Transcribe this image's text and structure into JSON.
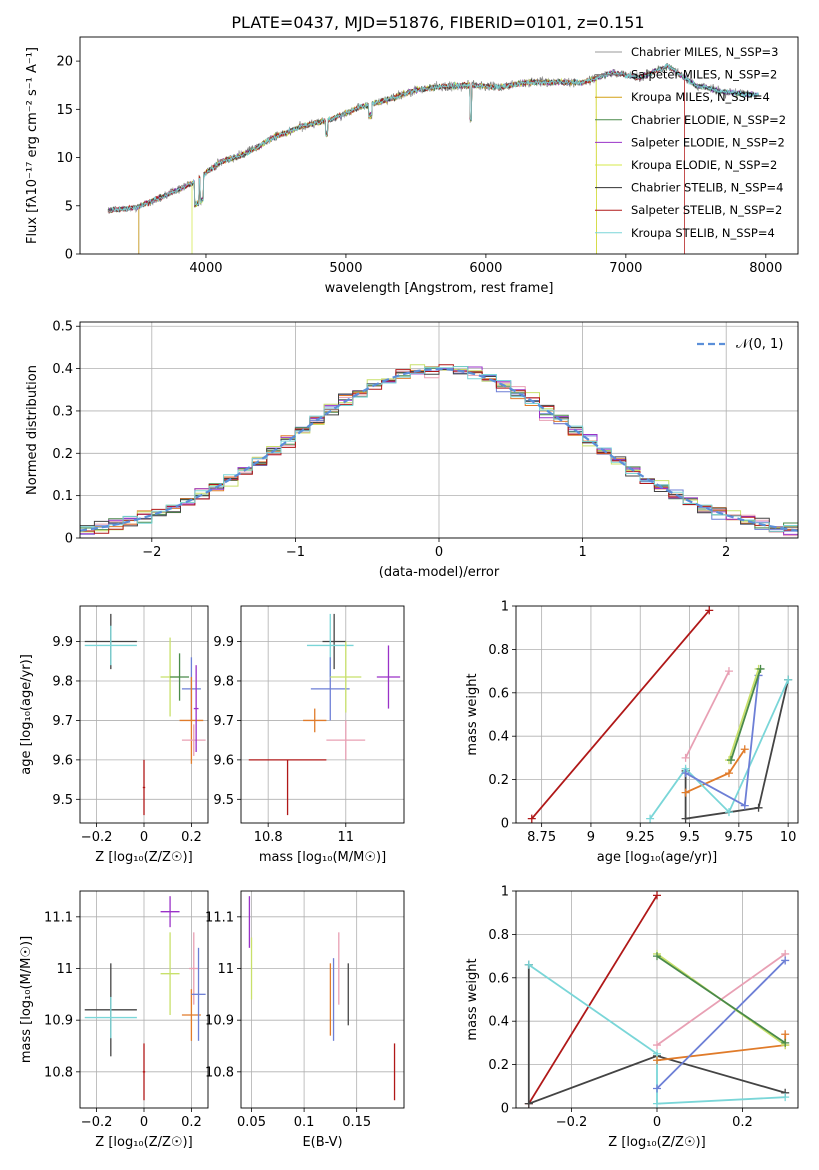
{
  "figure_title": "PLATE=0437, MJD=51876, FIBERID=0101, z=0.151",
  "colors": {
    "c0": "#e8a0b4",
    "c1": "#6d7fd6",
    "c2": "#e07b2a",
    "c3": "#4a8a4a",
    "c4": "#9a32c8",
    "c5": "#c8e06a",
    "c6": "#444444",
    "c7": "#b01818",
    "c8": "#7ad6d8",
    "gaussian": "#5b8fd9"
  },
  "chart_data": [
    {
      "id": "spectrum",
      "type": "line",
      "title": "PLATE=0437, MJD=51876, FIBERID=0101, z=0.151",
      "xlabel": "wavelength [Angstrom, rest frame]",
      "ylabel": "Flux [fλ10⁻¹⁷ erg cm⁻² s⁻¹ A⁻¹]",
      "xlim": [
        3100,
        8230
      ],
      "ylim": [
        0,
        22.5
      ],
      "xticks": [
        4000,
        5000,
        6000,
        7000,
        8000
      ],
      "yticks": [
        0,
        5,
        10,
        15,
        20
      ],
      "grid": false,
      "legend_position": "top-right",
      "series": [
        {
          "name": "Chabrier MILES, N_SSP=3",
          "color": "#9a9a9a"
        },
        {
          "name": "Salpeter MILES, N_SSP=2",
          "color": "#7a7a7a"
        },
        {
          "name": "Kroupa MILES, N_SSP=4",
          "color": "#d4a017"
        },
        {
          "name": "Chabrier ELODIE, N_SSP=2",
          "color": "#4a8a4a"
        },
        {
          "name": "Salpeter ELODIE, N_SSP=2",
          "color": "#9a32c8"
        },
        {
          "name": "Kroupa ELODIE, N_SSP=2",
          "color": "#d4e84a"
        },
        {
          "name": "Chabrier STELIB, N_SSP=4",
          "color": "#333333"
        },
        {
          "name": "Salpeter STELIB, N_SSP=2",
          "color": "#b01818"
        },
        {
          "name": "Kroupa STELIB, N_SSP=4",
          "color": "#7ad6d8"
        }
      ],
      "continuum": {
        "x": [
          3300,
          3500,
          3700,
          3900,
          4100,
          4300,
          4500,
          4700,
          4900,
          5100,
          5300,
          5500,
          5700,
          5900,
          6100,
          6300,
          6500,
          6700,
          6900,
          7100,
          7300,
          7500,
          7700,
          7950
        ],
        "y": [
          4.5,
          4.8,
          6.0,
          7.3,
          9.5,
          10.5,
          12.2,
          13.3,
          14.0,
          15.2,
          16.0,
          17.0,
          17.4,
          17.5,
          17.3,
          17.8,
          17.8,
          17.8,
          18.8,
          18.3,
          19.5,
          17.5,
          16.8,
          16.5
        ]
      }
    },
    {
      "id": "residuals",
      "type": "line",
      "xlabel": "(data-model)/error",
      "ylabel": "Normed distribution",
      "xlim": [
        -2.5,
        2.5
      ],
      "ylim": [
        0,
        0.51
      ],
      "xticks": [
        -2,
        -1,
        0,
        1,
        2
      ],
      "yticks": [
        0.0,
        0.1,
        0.2,
        0.3,
        0.4,
        0.5
      ],
      "grid": true,
      "legend_position": "top-right",
      "legend": [
        "𝒩(0, 1)"
      ],
      "gaussian": {
        "mean": 0,
        "sigma": 1
      }
    },
    {
      "id": "z-age",
      "type": "scatter",
      "xlabel": "Z [log₁₀(Z/Z☉)]",
      "ylabel": "age  [log₁₀(age/yr)]",
      "xlim": [
        -0.27,
        0.27
      ],
      "ylim": [
        9.44,
        9.99
      ],
      "xticks": [
        -0.2,
        0.0,
        0.2
      ],
      "yticks": [
        9.5,
        9.6,
        9.7,
        9.8,
        9.9
      ],
      "grid": true,
      "points": [
        {
          "x": -0.14,
          "y": 9.9,
          "xerr": 0.11,
          "yerr": 0.07,
          "c": "c6"
        },
        {
          "x": -0.14,
          "y": 9.89,
          "xerr": 0.11,
          "yerr": 0.05,
          "c": "c8"
        },
        {
          "x": 0.0,
          "y": 9.53,
          "xerr": 0.005,
          "yerr": 0.07,
          "c": "c7"
        },
        {
          "x": 0.11,
          "y": 9.81,
          "xerr": 0.04,
          "yerr": 0.1,
          "c": "c5"
        },
        {
          "x": 0.15,
          "y": 9.81,
          "xerr": 0.04,
          "yerr": 0.06,
          "c": "c3"
        },
        {
          "x": 0.2,
          "y": 9.78,
          "xerr": 0.04,
          "yerr": 0.08,
          "c": "c1"
        },
        {
          "x": 0.2,
          "y": 9.7,
          "xerr": 0.05,
          "yerr": 0.11,
          "c": "c2"
        },
        {
          "x": 0.21,
          "y": 9.65,
          "xerr": 0.05,
          "yerr": 0.04,
          "c": "c0"
        },
        {
          "x": 0.22,
          "y": 9.73,
          "xerr": 0.01,
          "yerr": 0.11,
          "c": "c4"
        }
      ]
    },
    {
      "id": "mass-age",
      "type": "scatter",
      "xlabel": "mass [log₁₀(M/M☉)]",
      "xlim": [
        10.73,
        11.15
      ],
      "ylim": [
        9.44,
        9.99
      ],
      "xticks": [
        10.8,
        11.0
      ],
      "yticks": [
        9.5,
        9.6,
        9.7,
        9.8,
        9.9
      ],
      "grid": true,
      "points": [
        {
          "x": 10.85,
          "y": 9.6,
          "xerr": 0.1,
          "yerr": 0.0,
          "c": "c7"
        },
        {
          "x": 10.85,
          "y": 9.53,
          "xerr": 0.0,
          "yerr": 0.07,
          "c": "c7"
        },
        {
          "x": 10.97,
          "y": 9.9,
          "xerr": 0.03,
          "yerr": 0.07,
          "c": "c6"
        },
        {
          "x": 10.96,
          "y": 9.89,
          "xerr": 0.06,
          "yerr": 0.08,
          "c": "c8"
        },
        {
          "x": 10.92,
          "y": 9.7,
          "xerr": 0.03,
          "yerr": 0.03,
          "c": "c2"
        },
        {
          "x": 10.96,
          "y": 9.78,
          "xerr": 0.05,
          "yerr": 0.08,
          "c": "c1"
        },
        {
          "x": 11.0,
          "y": 9.81,
          "xerr": 0.04,
          "yerr": 0.09,
          "c": "c5"
        },
        {
          "x": 11.0,
          "y": 9.65,
          "xerr": 0.05,
          "yerr": 0.05,
          "c": "c0"
        },
        {
          "x": 11.11,
          "y": 9.81,
          "xerr": 0.03,
          "yerr": 0.08,
          "c": "c4"
        }
      ]
    },
    {
      "id": "age-massweight",
      "type": "line",
      "xlabel": "age  [log₁₀(age/yr)]",
      "ylabel": "mass weight",
      "xlim": [
        8.62,
        10.05
      ],
      "ylim": [
        0,
        1.0
      ],
      "xticks": [
        8.75,
        9.0,
        9.25,
        9.5,
        9.75,
        10.0
      ],
      "yticks": [
        0.0,
        0.2,
        0.4,
        0.6,
        0.8,
        1.0
      ],
      "grid": true,
      "series": [
        {
          "c": "c7",
          "x": [
            8.7,
            9.6
          ],
          "y": [
            0.02,
            0.98
          ]
        },
        {
          "c": "c0",
          "x": [
            9.48,
            9.7
          ],
          "y": [
            0.3,
            0.7
          ]
        },
        {
          "c": "c6",
          "x": [
            9.48,
            9.48,
            9.85,
            10.0
          ],
          "y": [
            0.24,
            0.02,
            0.07,
            0.66
          ]
        },
        {
          "c": "c2",
          "x": [
            9.48,
            9.7,
            9.78
          ],
          "y": [
            0.14,
            0.23,
            0.34
          ]
        },
        {
          "c": "c8",
          "x": [
            9.3,
            9.48,
            9.7,
            10.0
          ],
          "y": [
            0.02,
            0.25,
            0.05,
            0.66
          ]
        },
        {
          "c": "c1",
          "x": [
            9.48,
            9.78,
            9.85
          ],
          "y": [
            0.23,
            0.08,
            0.68
          ]
        },
        {
          "c": "c5",
          "x": [
            9.7,
            9.85
          ],
          "y": [
            0.29,
            0.71
          ]
        },
        {
          "c": "c3",
          "x": [
            9.71,
            9.86
          ],
          "y": [
            0.29,
            0.71
          ]
        }
      ]
    },
    {
      "id": "z-mass",
      "type": "scatter",
      "xlabel": "Z [log₁₀(Z/Z☉)]",
      "ylabel": "mass [log₁₀(M/M☉)]",
      "xlim": [
        -0.27,
        0.27
      ],
      "ylim": [
        10.73,
        11.15
      ],
      "xticks": [
        -0.2,
        0.0,
        0.2
      ],
      "yticks": [
        10.8,
        10.9,
        11.0,
        11.1
      ],
      "grid": true,
      "points": [
        {
          "x": -0.14,
          "y": 10.92,
          "xerr": 0.11,
          "yerr": 0.09,
          "c": "c6"
        },
        {
          "x": -0.14,
          "y": 10.905,
          "xerr": 0.11,
          "yerr": 0.04,
          "c": "c8"
        },
        {
          "x": 0.0,
          "y": 10.8,
          "xerr": 0.005,
          "yerr": 0.055,
          "c": "c7"
        },
        {
          "x": 0.11,
          "y": 11.11,
          "xerr": 0.04,
          "yerr": 0.03,
          "c": "c4"
        },
        {
          "x": 0.11,
          "y": 10.99,
          "xerr": 0.04,
          "yerr": 0.08,
          "c": "c5"
        },
        {
          "x": 0.2,
          "y": 10.91,
          "xerr": 0.04,
          "yerr": 0.05,
          "c": "c2"
        },
        {
          "x": 0.21,
          "y": 11.0,
          "xerr": 0.02,
          "yerr": 0.07,
          "c": "c0"
        },
        {
          "x": 0.23,
          "y": 10.95,
          "xerr": 0.03,
          "yerr": 0.09,
          "c": "c1"
        }
      ]
    },
    {
      "id": "ebv-mass",
      "type": "scatter",
      "xlabel": "E(B-V)",
      "xlim": [
        0.04,
        0.195
      ],
      "ylim": [
        10.73,
        11.15
      ],
      "xticks": [
        0.05,
        0.1,
        0.15
      ],
      "yticks": [
        10.8,
        10.9,
        11.0,
        11.1
      ],
      "grid": true,
      "points": [
        {
          "x": 0.048,
          "y": 11.09,
          "xerr": 0.0,
          "yerr": 0.05,
          "c": "c4"
        },
        {
          "x": 0.05,
          "y": 11.0,
          "xerr": 0.0,
          "yerr": 0.06,
          "c": "c5"
        },
        {
          "x": 0.125,
          "y": 10.94,
          "xerr": 0.0,
          "yerr": 0.07,
          "c": "c2"
        },
        {
          "x": 0.128,
          "y": 10.94,
          "xerr": 0.0,
          "yerr": 0.08,
          "c": "c1"
        },
        {
          "x": 0.133,
          "y": 11.0,
          "xerr": 0.0,
          "yerr": 0.07,
          "c": "c0"
        },
        {
          "x": 0.142,
          "y": 10.95,
          "xerr": 0.0,
          "yerr": 0.06,
          "c": "c6"
        },
        {
          "x": 0.186,
          "y": 10.8,
          "xerr": 0.0,
          "yerr": 0.055,
          "c": "c7"
        }
      ]
    },
    {
      "id": "z-massweight",
      "type": "line",
      "xlabel": "Z [log₁₀(Z/Z☉)]",
      "ylabel": "mass weight",
      "xlim": [
        -0.33,
        0.33
      ],
      "ylim": [
        0,
        1.0
      ],
      "xticks": [
        -0.2,
        0.0,
        0.2
      ],
      "yticks": [
        0.0,
        0.2,
        0.4,
        0.6,
        0.8,
        1.0
      ],
      "grid": true,
      "series": [
        {
          "c": "c7",
          "x": [
            -0.3,
            0.0
          ],
          "y": [
            0.02,
            0.98
          ]
        },
        {
          "c": "c6",
          "x": [
            -0.3,
            -0.3,
            0.0,
            0.3
          ],
          "y": [
            0.66,
            0.02,
            0.24,
            0.07
          ]
        },
        {
          "c": "c8",
          "x": [
            -0.3,
            0.0,
            0.0,
            0.3
          ],
          "y": [
            0.66,
            0.25,
            0.02,
            0.05
          ]
        },
        {
          "c": "c0",
          "x": [
            0.0,
            0.3
          ],
          "y": [
            0.29,
            0.71
          ]
        },
        {
          "c": "c2",
          "x": [
            0.0,
            0.3,
            0.3
          ],
          "y": [
            0.22,
            0.29,
            0.34
          ]
        },
        {
          "c": "c1",
          "x": [
            0.0,
            0.3
          ],
          "y": [
            0.09,
            0.68
          ]
        },
        {
          "c": "c5",
          "x": [
            0.0,
            0.3
          ],
          "y": [
            0.71,
            0.29
          ]
        },
        {
          "c": "c3",
          "x": [
            0.0,
            0.3
          ],
          "y": [
            0.7,
            0.3
          ]
        }
      ]
    }
  ]
}
